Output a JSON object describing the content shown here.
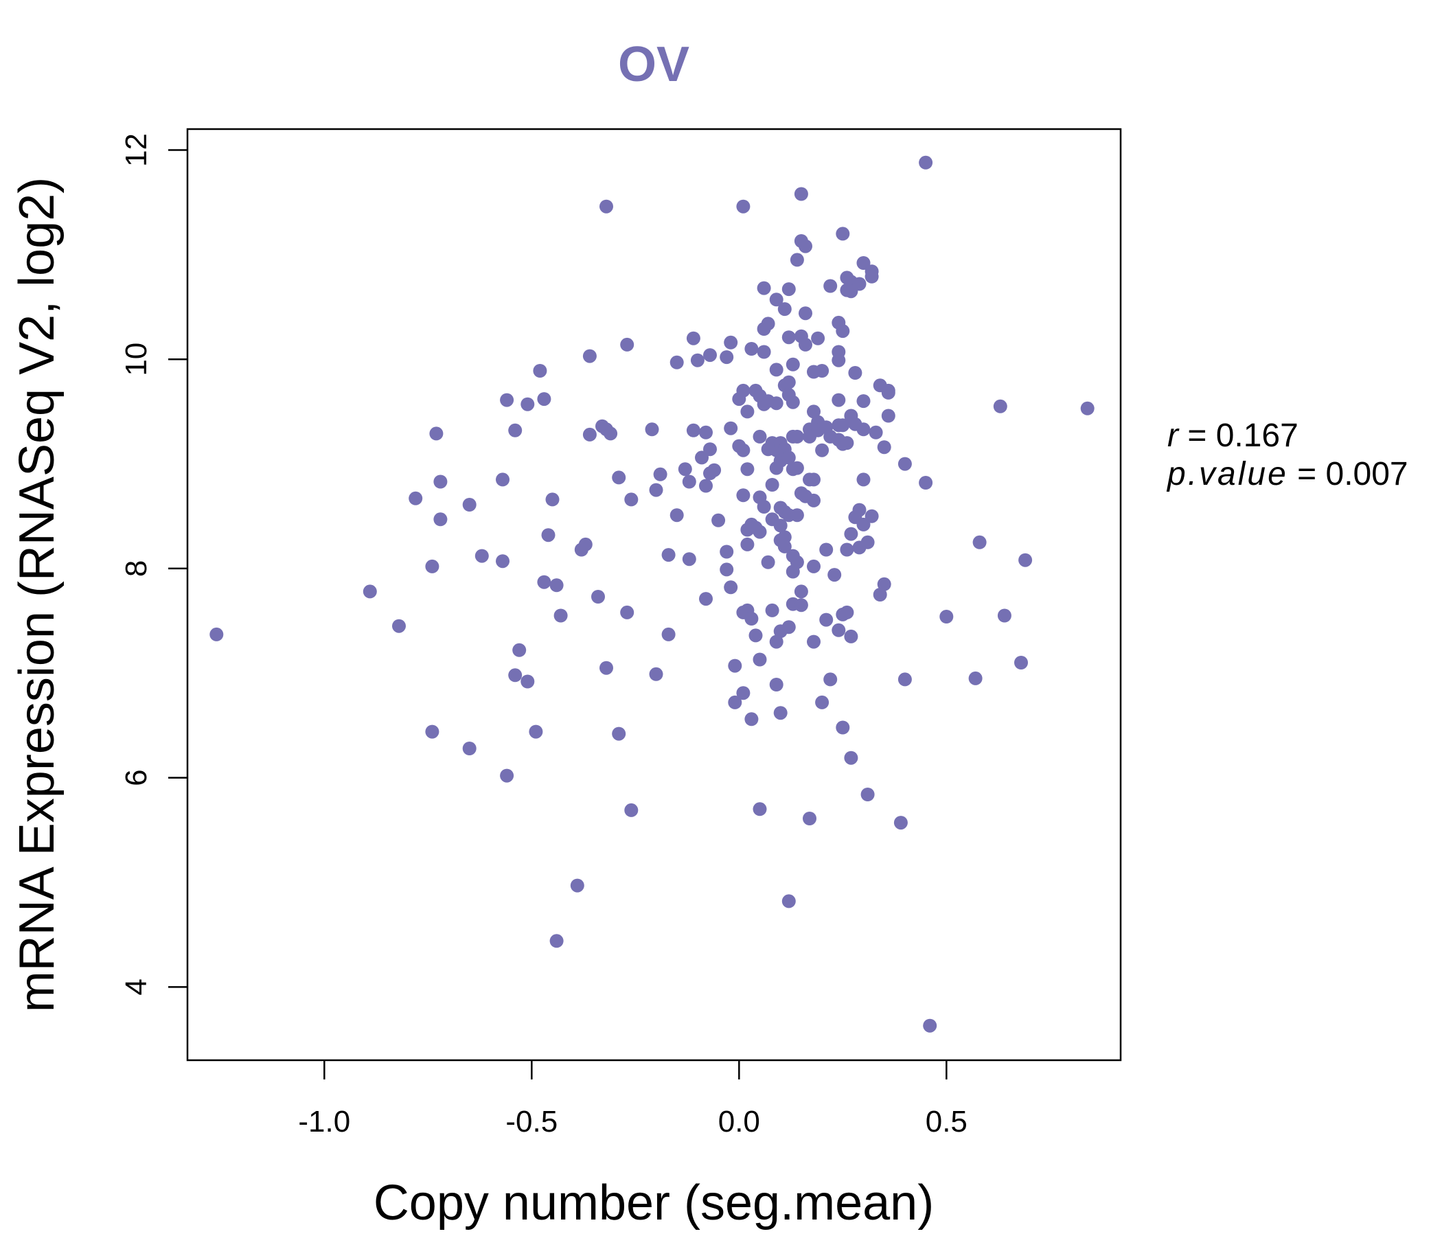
{
  "chart_data": {
    "type": "scatter",
    "title": "OV",
    "xlabel": "Copy number (seg.mean)",
    "ylabel": "mRNA Expression (RNASeq V2, log2)",
    "xlim": [
      -1.33,
      0.92
    ],
    "ylim": [
      3.3,
      12.2
    ],
    "xticks": [
      -1.0,
      -0.5,
      0.0,
      0.5
    ],
    "xtick_labels": [
      "-1.0",
      "-0.5",
      "0.0",
      "0.5"
    ],
    "yticks": [
      4,
      6,
      8,
      10,
      12
    ],
    "ytick_labels": [
      "4",
      "6",
      "8",
      "10",
      "12"
    ],
    "grid": false,
    "legend": "none",
    "color": "#7570b3",
    "stats": {
      "r_label": "r",
      "r_value": "0.167",
      "p_label": "p.value",
      "p_value": "0.007"
    },
    "points": [
      [
        -1.26,
        7.37
      ],
      [
        -0.89,
        7.78
      ],
      [
        -0.82,
        7.45
      ],
      [
        -0.78,
        8.67
      ],
      [
        -0.74,
        8.02
      ],
      [
        -0.74,
        6.44
      ],
      [
        -0.73,
        9.29
      ],
      [
        -0.72,
        8.83
      ],
      [
        -0.72,
        8.47
      ],
      [
        -0.65,
        8.61
      ],
      [
        -0.65,
        6.28
      ],
      [
        -0.62,
        8.12
      ],
      [
        -0.57,
        8.85
      ],
      [
        -0.57,
        8.07
      ],
      [
        -0.56,
        9.61
      ],
      [
        -0.56,
        6.02
      ],
      [
        -0.54,
        9.32
      ],
      [
        -0.54,
        6.98
      ],
      [
        -0.53,
        7.22
      ],
      [
        -0.51,
        9.57
      ],
      [
        -0.51,
        6.92
      ],
      [
        -0.49,
        6.44
      ],
      [
        -0.48,
        9.89
      ],
      [
        -0.47,
        9.62
      ],
      [
        -0.47,
        7.87
      ],
      [
        -0.46,
        8.32
      ],
      [
        -0.45,
        8.66
      ],
      [
        -0.44,
        7.84
      ],
      [
        -0.44,
        4.44
      ],
      [
        -0.43,
        7.55
      ],
      [
        -0.39,
        4.97
      ],
      [
        -0.38,
        8.18
      ],
      [
        -0.37,
        8.23
      ],
      [
        -0.36,
        9.28
      ],
      [
        -0.36,
        10.03
      ],
      [
        -0.34,
        7.73
      ],
      [
        -0.33,
        9.36
      ],
      [
        -0.32,
        11.46
      ],
      [
        -0.32,
        9.33
      ],
      [
        -0.32,
        7.05
      ],
      [
        -0.31,
        9.29
      ],
      [
        -0.29,
        8.87
      ],
      [
        -0.29,
        6.42
      ],
      [
        -0.27,
        10.14
      ],
      [
        -0.27,
        7.58
      ],
      [
        -0.26,
        8.66
      ],
      [
        -0.26,
        5.69
      ],
      [
        -0.21,
        9.33
      ],
      [
        -0.2,
        8.75
      ],
      [
        -0.2,
        6.99
      ],
      [
        -0.19,
        8.9
      ],
      [
        -0.17,
        8.13
      ],
      [
        -0.17,
        7.37
      ],
      [
        -0.15,
        9.97
      ],
      [
        -0.15,
        8.51
      ],
      [
        -0.13,
        8.95
      ],
      [
        -0.12,
        8.83
      ],
      [
        -0.12,
        8.09
      ],
      [
        -0.11,
        10.2
      ],
      [
        -0.11,
        9.32
      ],
      [
        -0.1,
        9.99
      ],
      [
        -0.09,
        9.06
      ],
      [
        -0.08,
        9.3
      ],
      [
        -0.08,
        8.79
      ],
      [
        -0.08,
        7.71
      ],
      [
        -0.07,
        10.04
      ],
      [
        -0.07,
        9.14
      ],
      [
        -0.07,
        8.91
      ],
      [
        -0.06,
        8.94
      ],
      [
        -0.05,
        8.46
      ],
      [
        -0.03,
        10.02
      ],
      [
        -0.03,
        8.16
      ],
      [
        -0.03,
        7.99
      ],
      [
        -0.02,
        10.16
      ],
      [
        -0.02,
        9.34
      ],
      [
        -0.02,
        7.82
      ],
      [
        -0.01,
        6.72
      ],
      [
        -0.01,
        7.07
      ],
      [
        0.0,
        9.62
      ],
      [
        0.0,
        9.17
      ],
      [
        0.01,
        11.46
      ],
      [
        0.01,
        9.7
      ],
      [
        0.01,
        9.13
      ],
      [
        0.01,
        8.7
      ],
      [
        0.01,
        7.58
      ],
      [
        0.01,
        6.81
      ],
      [
        0.02,
        9.5
      ],
      [
        0.02,
        8.95
      ],
      [
        0.02,
        8.37
      ],
      [
        0.02,
        8.23
      ],
      [
        0.02,
        7.6
      ],
      [
        0.03,
        10.1
      ],
      [
        0.03,
        8.42
      ],
      [
        0.03,
        6.56
      ],
      [
        0.03,
        7.52
      ],
      [
        0.04,
        9.7
      ],
      [
        0.04,
        8.39
      ],
      [
        0.04,
        7.36
      ],
      [
        0.05,
        9.65
      ],
      [
        0.05,
        9.26
      ],
      [
        0.05,
        8.68
      ],
      [
        0.05,
        8.35
      ],
      [
        0.05,
        7.13
      ],
      [
        0.05,
        5.7
      ],
      [
        0.06,
        10.68
      ],
      [
        0.06,
        10.29
      ],
      [
        0.06,
        10.07
      ],
      [
        0.06,
        9.57
      ],
      [
        0.06,
        8.59
      ],
      [
        0.07,
        10.34
      ],
      [
        0.07,
        9.6
      ],
      [
        0.07,
        9.14
      ],
      [
        0.07,
        8.06
      ],
      [
        0.08,
        9.2
      ],
      [
        0.08,
        8.8
      ],
      [
        0.08,
        8.47
      ],
      [
        0.08,
        7.6
      ],
      [
        0.09,
        10.57
      ],
      [
        0.09,
        9.9
      ],
      [
        0.09,
        9.58
      ],
      [
        0.09,
        9.13
      ],
      [
        0.09,
        8.96
      ],
      [
        0.09,
        6.89
      ],
      [
        0.09,
        7.3
      ],
      [
        0.1,
        9.2
      ],
      [
        0.1,
        9.03
      ],
      [
        0.1,
        8.58
      ],
      [
        0.1,
        8.41
      ],
      [
        0.1,
        8.27
      ],
      [
        0.1,
        7.4
      ],
      [
        0.1,
        6.62
      ],
      [
        0.11,
        10.48
      ],
      [
        0.11,
        9.75
      ],
      [
        0.11,
        9.14
      ],
      [
        0.11,
        8.54
      ],
      [
        0.11,
        8.3
      ],
      [
        0.11,
        8.21
      ],
      [
        0.12,
        10.67
      ],
      [
        0.12,
        10.21
      ],
      [
        0.12,
        9.78
      ],
      [
        0.12,
        9.66
      ],
      [
        0.12,
        9.06
      ],
      [
        0.12,
        8.51
      ],
      [
        0.12,
        7.44
      ],
      [
        0.12,
        4.82
      ],
      [
        0.13,
        9.95
      ],
      [
        0.13,
        9.59
      ],
      [
        0.13,
        9.26
      ],
      [
        0.13,
        8.95
      ],
      [
        0.13,
        8.12
      ],
      [
        0.13,
        7.97
      ],
      [
        0.13,
        7.66
      ],
      [
        0.14,
        10.95
      ],
      [
        0.14,
        9.26
      ],
      [
        0.14,
        8.96
      ],
      [
        0.14,
        8.51
      ],
      [
        0.14,
        8.06
      ],
      [
        0.15,
        11.13
      ],
      [
        0.15,
        11.58
      ],
      [
        0.15,
        10.22
      ],
      [
        0.15,
        8.72
      ],
      [
        0.15,
        7.78
      ],
      [
        0.15,
        7.65
      ],
      [
        0.16,
        11.08
      ],
      [
        0.16,
        10.44
      ],
      [
        0.16,
        10.14
      ],
      [
        0.16,
        8.69
      ],
      [
        0.17,
        9.33
      ],
      [
        0.17,
        9.26
      ],
      [
        0.17,
        8.85
      ],
      [
        0.17,
        5.61
      ],
      [
        0.18,
        9.5
      ],
      [
        0.18,
        9.88
      ],
      [
        0.18,
        8.85
      ],
      [
        0.18,
        8.65
      ],
      [
        0.18,
        8.02
      ],
      [
        0.18,
        7.3
      ],
      [
        0.19,
        9.4
      ],
      [
        0.19,
        9.32
      ],
      [
        0.19,
        10.2
      ],
      [
        0.2,
        9.13
      ],
      [
        0.2,
        9.89
      ],
      [
        0.2,
        6.72
      ],
      [
        0.21,
        9.35
      ],
      [
        0.21,
        8.18
      ],
      [
        0.21,
        7.51
      ],
      [
        0.22,
        10.7
      ],
      [
        0.22,
        9.26
      ],
      [
        0.22,
        6.94
      ],
      [
        0.23,
        7.94
      ],
      [
        0.24,
        10.35
      ],
      [
        0.24,
        10.07
      ],
      [
        0.24,
        9.61
      ],
      [
        0.24,
        9.37
      ],
      [
        0.24,
        9.23
      ],
      [
        0.24,
        9.99
      ],
      [
        0.24,
        7.41
      ],
      [
        0.25,
        11.2
      ],
      [
        0.25,
        10.27
      ],
      [
        0.25,
        9.37
      ],
      [
        0.25,
        9.19
      ],
      [
        0.25,
        7.56
      ],
      [
        0.25,
        6.48
      ],
      [
        0.26,
        10.78
      ],
      [
        0.26,
        10.66
      ],
      [
        0.26,
        9.2
      ],
      [
        0.26,
        8.18
      ],
      [
        0.26,
        7.58
      ],
      [
        0.27,
        10.74
      ],
      [
        0.27,
        10.65
      ],
      [
        0.27,
        9.46
      ],
      [
        0.27,
        8.33
      ],
      [
        0.27,
        7.35
      ],
      [
        0.27,
        6.19
      ],
      [
        0.28,
        9.38
      ],
      [
        0.28,
        9.87
      ],
      [
        0.28,
        8.49
      ],
      [
        0.29,
        10.72
      ],
      [
        0.29,
        8.56
      ],
      [
        0.29,
        8.2
      ],
      [
        0.3,
        10.92
      ],
      [
        0.3,
        9.6
      ],
      [
        0.3,
        9.33
      ],
      [
        0.3,
        8.85
      ],
      [
        0.3,
        8.42
      ],
      [
        0.31,
        8.25
      ],
      [
        0.31,
        5.84
      ],
      [
        0.32,
        10.84
      ],
      [
        0.32,
        10.79
      ],
      [
        0.32,
        8.5
      ],
      [
        0.33,
        9.3
      ],
      [
        0.34,
        9.75
      ],
      [
        0.34,
        7.75
      ],
      [
        0.35,
        9.16
      ],
      [
        0.35,
        7.85
      ],
      [
        0.36,
        9.68
      ],
      [
        0.36,
        9.46
      ],
      [
        0.36,
        9.7
      ],
      [
        0.39,
        5.57
      ],
      [
        0.4,
        9.0
      ],
      [
        0.4,
        6.94
      ],
      [
        0.45,
        11.88
      ],
      [
        0.45,
        8.82
      ],
      [
        0.46,
        3.63
      ],
      [
        0.5,
        7.54
      ],
      [
        0.57,
        6.95
      ],
      [
        0.58,
        8.25
      ],
      [
        0.63,
        9.55
      ],
      [
        0.64,
        7.55
      ],
      [
        0.68,
        7.1
      ],
      [
        0.69,
        8.08
      ],
      [
        0.84,
        9.53
      ]
    ]
  }
}
